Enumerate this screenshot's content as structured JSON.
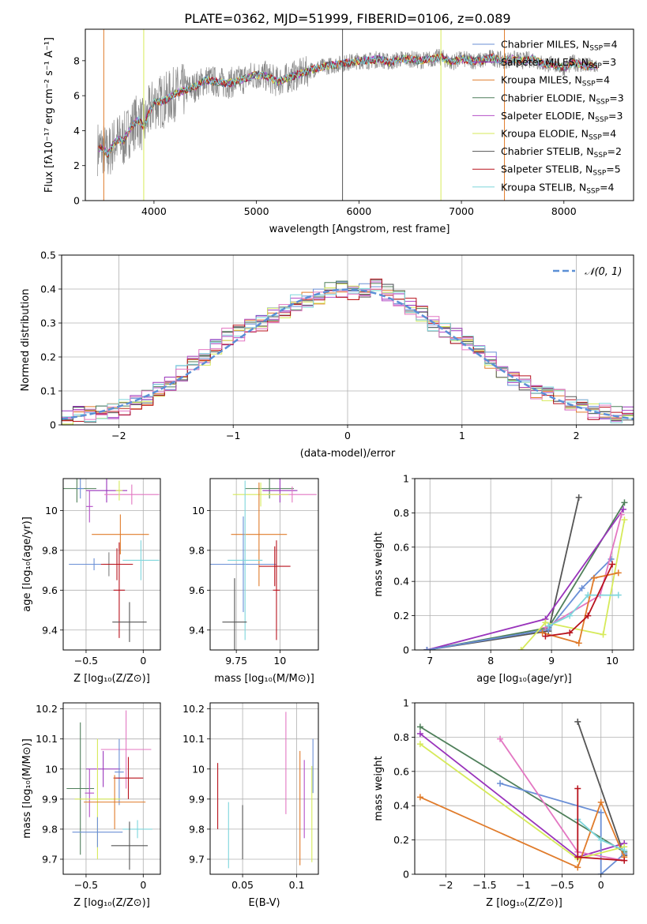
{
  "figure": {
    "title": "PLATE=0362, MJD=51999, FIBERID=0106, z=0.089"
  },
  "chart_data": [
    {
      "id": "spectrum",
      "type": "line",
      "xlabel": "wavelength [Angstrom, rest frame]",
      "ylabel": "Flux [fλ10⁻¹⁷ erg cm⁻² s⁻¹ A⁻¹]",
      "xlim": [
        3330,
        8680
      ],
      "ylim": [
        0,
        9.8
      ],
      "xticks": [
        4000,
        5000,
        6000,
        7000,
        8000
      ],
      "yticks": [
        0,
        2,
        4,
        6,
        8
      ],
      "grid": false,
      "legend": "right",
      "data": {
        "x": [
          3500,
          3550,
          3600,
          3650,
          3700,
          3750,
          3800,
          3850,
          3900,
          3950,
          4000,
          4100,
          4200,
          4300,
          4400,
          4500,
          4600,
          4700,
          4800,
          4900,
          5000,
          5100,
          5200,
          5300,
          5400,
          5500,
          5600,
          5700,
          5800,
          5900,
          6000,
          6100,
          6200,
          6300,
          6400,
          6500,
          6600,
          6700,
          6800,
          6900,
          7000,
          7100,
          7200,
          7300,
          7400,
          7500,
          7600,
          7700,
          7800,
          7900,
          8000,
          8100,
          8200,
          8300
        ],
        "y": [
          3.0,
          2.6,
          3.2,
          3.5,
          3.4,
          3.9,
          4.4,
          4.6,
          4.2,
          5.0,
          5.6,
          5.7,
          6.1,
          6.3,
          6.5,
          6.9,
          6.8,
          6.7,
          6.8,
          7.0,
          7.2,
          7.1,
          6.8,
          7.0,
          7.2,
          7.4,
          7.6,
          7.7,
          7.8,
          7.9,
          8.0,
          8.0,
          8.1,
          7.9,
          8.1,
          8.1,
          8.0,
          8.1,
          8.2,
          7.9,
          8.1,
          8.0,
          8.0,
          8.2,
          8.0,
          8.1,
          8.0,
          8.1,
          7.8,
          7.8,
          7.6,
          7.9,
          7.7,
          7.7
        ]
      },
      "series": [
        {
          "name": "Chabrier MILES, N<sub>SSP</sub>=4",
          "color": "#6a8fd6"
        },
        {
          "name": "Salpeter MILES, N<sub>SSP</sub>=3",
          "color": "#9933bb"
        },
        {
          "name": "Kroupa MILES, N<sub>SSP</sub>=4",
          "color": "#e07b2a"
        },
        {
          "name": "Chabrier ELODIE, N<sub>SSP</sub>=3",
          "color": "#4f7f5a"
        },
        {
          "name": "Salpeter ELODIE, N<sub>SSP</sub>=3",
          "color": "#b44fc7"
        },
        {
          "name": "Kroupa ELODIE, N<sub>SSP</sub>=4",
          "color": "#d6ea5a"
        },
        {
          "name": "Chabrier STELIB, N<sub>SSP</sub>=2",
          "color": "#555555"
        },
        {
          "name": "Salpeter STELIB, N<sub>SSP</sub>=5",
          "color": "#b8121c"
        },
        {
          "name": "Kroupa STELIB, N<sub>SSP</sub>=4",
          "color": "#7ed6dc"
        }
      ],
      "data_color": "#888888",
      "spikes": [
        {
          "x": 3510,
          "color": "#e07b2a"
        },
        {
          "x": 3900,
          "color": "#d6ea5a"
        },
        {
          "x": 5840,
          "color": "#555555"
        },
        {
          "x": 6800,
          "color": "#d6ea5a"
        },
        {
          "x": 7420,
          "color": "#e07b2a"
        }
      ]
    },
    {
      "id": "residuals",
      "type": "line",
      "xlabel": "(data-model)/error",
      "ylabel": "Normed distribution",
      "xlim": [
        -2.5,
        2.5
      ],
      "ylim": [
        0,
        0.5
      ],
      "xticks": [
        -2,
        -1,
        0,
        1,
        2
      ],
      "yticks": [
        0.0,
        0.1,
        0.2,
        0.3,
        0.4,
        0.5
      ],
      "grid": true,
      "legend": "top-right",
      "legend_label": "𝒩(0, 1)",
      "gaussian_color": "#5b8fd6",
      "bin_edges": [
        -2.5,
        -2.4,
        -2.3,
        -2.2,
        -2.1,
        -2.0,
        -1.9,
        -1.8,
        -1.7,
        -1.6,
        -1.5,
        -1.4,
        -1.3,
        -1.2,
        -1.1,
        -1.0,
        -0.9,
        -0.8,
        -0.7,
        -0.6,
        -0.5,
        -0.4,
        -0.3,
        -0.2,
        -0.1,
        0.0,
        0.1,
        0.2,
        0.3,
        0.4,
        0.5,
        0.6,
        0.7,
        0.8,
        0.9,
        1.0,
        1.1,
        1.2,
        1.3,
        1.4,
        1.5,
        1.6,
        1.7,
        1.8,
        1.9,
        2.0,
        2.1,
        2.2,
        2.3,
        2.4,
        2.5
      ],
      "base": [
        0.02,
        0.03,
        0.03,
        0.04,
        0.04,
        0.05,
        0.07,
        0.08,
        0.1,
        0.12,
        0.15,
        0.18,
        0.2,
        0.23,
        0.26,
        0.27,
        0.29,
        0.3,
        0.32,
        0.34,
        0.36,
        0.37,
        0.38,
        0.4,
        0.4,
        0.39,
        0.4,
        0.41,
        0.39,
        0.37,
        0.35,
        0.33,
        0.3,
        0.28,
        0.26,
        0.24,
        0.22,
        0.19,
        0.16,
        0.14,
        0.12,
        0.1,
        0.09,
        0.08,
        0.06,
        0.05,
        0.04,
        0.04,
        0.03,
        0.03
      ]
    },
    {
      "id": "age-vs-Z",
      "type": "scatter",
      "xlabel": "Z [log₁₀(Z/Z⊙)]",
      "ylabel": "age  [log₁₀(age/yr)]",
      "xlim": [
        -0.7,
        0.15
      ],
      "ylim": [
        9.3,
        10.16
      ],
      "xticks": [
        -0.5,
        0.0
      ],
      "yticks": [
        9.4,
        9.6,
        9.8,
        10.0
      ],
      "grid": true,
      "points": [
        {
          "x": -0.58,
          "y": 10.11,
          "xerr": 0.17,
          "yerr": 0.07,
          "color": "#4f7f5a"
        },
        {
          "x": -0.32,
          "y": 10.1,
          "xerr": 0.18,
          "yerr": 0.06,
          "color": "#9933bb"
        },
        {
          "x": -0.55,
          "y": 10.11,
          "xerr": 0.03,
          "yerr": 0.05,
          "color": "#6a8fd6"
        },
        {
          "x": -0.1,
          "y": 10.08,
          "xerr": 0.24,
          "yerr": 0.05,
          "color": "#e377c2"
        },
        {
          "x": -0.21,
          "y": 10.1,
          "xerr": 0.03,
          "yerr": 0.05,
          "color": "#d6ea5a"
        },
        {
          "x": -0.2,
          "y": 9.88,
          "xerr": 0.25,
          "yerr": 0.1,
          "color": "#e07b2a"
        },
        {
          "x": -0.47,
          "y": 10.02,
          "xerr": 0.03,
          "yerr": 0.08,
          "color": "#b44fc7"
        },
        {
          "x": -0.43,
          "y": 9.73,
          "xerr": 0.22,
          "yerr": 0.03,
          "color": "#6a8fd6"
        },
        {
          "x": -0.3,
          "y": 9.73,
          "xerr": 0.05,
          "yerr": 0.06,
          "color": "#7f7f7f"
        },
        {
          "x": -0.23,
          "y": 9.73,
          "xerr": 0.14,
          "yerr": 0.08,
          "color": "#b8121c"
        },
        {
          "x": -0.02,
          "y": 9.75,
          "xerr": 0.16,
          "yerr": 0.1,
          "color": "#7ed6dc"
        },
        {
          "x": -0.21,
          "y": 9.6,
          "xerr": 0.05,
          "yerr": 0.24,
          "color": "#b8121c"
        },
        {
          "x": -0.12,
          "y": 9.44,
          "xerr": 0.15,
          "yerr": 0.1,
          "color": "#555555"
        }
      ]
    },
    {
      "id": "age-vs-mass",
      "type": "scatter",
      "xlabel": "mass [log₁₀(M/M⊙)]",
      "ylabel": "",
      "xlim": [
        9.6,
        10.22
      ],
      "ylim": [
        9.3,
        10.16
      ],
      "xticks": [
        9.75,
        10.0
      ],
      "yticks": [
        9.4,
        9.6,
        9.8,
        10.0
      ],
      "grid": true,
      "points": [
        {
          "x": 9.94,
          "y": 10.11,
          "xerr": 0.14,
          "yerr": 0.05,
          "color": "#4f7f5a"
        },
        {
          "x": 10.0,
          "y": 10.1,
          "xerr": 0.1,
          "yerr": 0.06,
          "color": "#9933bb"
        },
        {
          "x": 10.07,
          "y": 10.08,
          "xerr": 0.14,
          "yerr": 0.04,
          "color": "#e377c2"
        },
        {
          "x": 9.89,
          "y": 10.08,
          "xerr": 0.16,
          "yerr": 0.06,
          "color": "#d6ea5a"
        },
        {
          "x": 9.88,
          "y": 9.88,
          "xerr": 0.16,
          "yerr": 0.26,
          "color": "#e07b2a"
        },
        {
          "x": 9.79,
          "y": 9.73,
          "xerr": 0.03,
          "yerr": 0.24,
          "color": "#6a8fd6"
        },
        {
          "x": 9.79,
          "y": 9.73,
          "xerr": 0.19,
          "yerr": 0.03,
          "color": "#6a8fd6"
        },
        {
          "x": 9.8,
          "y": 9.75,
          "xerr": 0.1,
          "yerr": 0.4,
          "color": "#7ed6dc"
        },
        {
          "x": 9.97,
          "y": 9.72,
          "xerr": 0.09,
          "yerr": 0.1,
          "color": "#b8121c"
        },
        {
          "x": 9.98,
          "y": 9.6,
          "xerr": 0.02,
          "yerr": 0.25,
          "color": "#b8121c"
        },
        {
          "x": 9.74,
          "y": 9.44,
          "xerr": 0.07,
          "yerr": 0.22,
          "color": "#555555"
        }
      ]
    },
    {
      "id": "weight-vs-age",
      "type": "line",
      "xlabel": "age  [log₁₀(age/yr)]",
      "ylabel": "mass weight",
      "xlim": [
        6.75,
        10.35
      ],
      "ylim": [
        0,
        1.0
      ],
      "xticks": [
        7,
        8,
        9,
        10
      ],
      "yticks": [
        0.0,
        0.2,
        0.4,
        0.6,
        0.8,
        1.0
      ],
      "grid": true,
      "series": [
        {
          "color": "#555555",
          "x": [
            6.95,
            8.95,
            9.45
          ],
          "y": [
            0.0,
            0.11,
            0.89
          ]
        },
        {
          "color": "#4f7f5a",
          "x": [
            6.95,
            8.95,
            10.2
          ],
          "y": [
            0.0,
            0.13,
            0.86
          ]
        },
        {
          "color": "#9933bb",
          "x": [
            6.95,
            8.9,
            10.18
          ],
          "y": [
            0.0,
            0.18,
            0.82
          ]
        },
        {
          "color": "#6a8fd6",
          "x": [
            6.95,
            8.95,
            9.5,
            9.98
          ],
          "y": [
            0.0,
            0.12,
            0.36,
            0.53
          ]
        },
        {
          "color": "#e377c2",
          "x": [
            8.9,
            9.8,
            10.15
          ],
          "y": [
            0.13,
            0.32,
            0.79
          ]
        },
        {
          "color": "#d6ea5a",
          "x": [
            8.5,
            8.9,
            9.85,
            10.2
          ],
          "y": [
            0.0,
            0.16,
            0.09,
            0.76
          ]
        },
        {
          "color": "#e07b2a",
          "x": [
            8.85,
            9.45,
            9.7,
            10.1
          ],
          "y": [
            0.1,
            0.04,
            0.42,
            0.45
          ]
        },
        {
          "color": "#7ed6dc",
          "x": [
            8.95,
            9.3,
            9.6,
            10.1
          ],
          "y": [
            0.14,
            0.2,
            0.32,
            0.32
          ]
        },
        {
          "color": "#b8121c",
          "x": [
            8.9,
            9.3,
            9.6,
            10.0
          ],
          "y": [
            0.08,
            0.1,
            0.2,
            0.5
          ]
        }
      ]
    },
    {
      "id": "mass-vs-Z",
      "type": "scatter",
      "xlabel": "Z [log₁₀(Z/Z⊙)]",
      "ylabel": "mass [log₁₀(M/M⊙)]",
      "xlim": [
        -0.7,
        0.15
      ],
      "ylim": [
        9.65,
        10.22
      ],
      "xticks": [
        -0.5,
        0.0
      ],
      "yticks": [
        9.7,
        9.8,
        9.9,
        10.0,
        10.1,
        10.2
      ],
      "grid": true,
      "points": [
        {
          "x": -0.15,
          "y": 10.065,
          "xerr": 0.22,
          "yerr": 0.13,
          "color": "#e377c2"
        },
        {
          "x": -0.35,
          "y": 10.0,
          "xerr": 0.15,
          "yerr": 0.06,
          "color": "#9933bb"
        },
        {
          "x": -0.21,
          "y": 9.99,
          "xerr": 0.04,
          "yerr": 0.11,
          "color": "#6a8fd6"
        },
        {
          "x": -0.13,
          "y": 9.97,
          "xerr": 0.13,
          "yerr": 0.07,
          "color": "#b8121c"
        },
        {
          "x": -0.55,
          "y": 9.935,
          "xerr": 0.12,
          "yerr": 0.22,
          "color": "#4f7f5a"
        },
        {
          "x": -0.47,
          "y": 9.92,
          "xerr": 0.04,
          "yerr": 0.08,
          "color": "#b44fc7"
        },
        {
          "x": -0.4,
          "y": 9.9,
          "xerr": 0.2,
          "yerr": 0.2,
          "color": "#d6ea5a"
        },
        {
          "x": -0.25,
          "y": 9.89,
          "xerr": 0.27,
          "yerr": 0.09,
          "color": "#e07b2a"
        },
        {
          "x": -0.4,
          "y": 9.79,
          "xerr": 0.22,
          "yerr": 0.05,
          "color": "#6a8fd6"
        },
        {
          "x": -0.05,
          "y": 9.8,
          "xerr": 0.13,
          "yerr": 0.03,
          "color": "#7ed6dc"
        },
        {
          "x": -0.12,
          "y": 9.745,
          "xerr": 0.16,
          "yerr": 0.08,
          "color": "#555555"
        }
      ]
    },
    {
      "id": "mass-vs-EBV",
      "type": "scatter",
      "xlabel": "E(B-V)",
      "ylabel": "",
      "xlim": [
        0.02,
        0.12
      ],
      "ylim": [
        9.65,
        10.22
      ],
      "xticks": [
        0.05,
        0.1
      ],
      "yticks": [
        9.7,
        9.8,
        9.9,
        10.0,
        10.1,
        10.2
      ],
      "grid": true,
      "points": [
        {
          "x": 0.027,
          "y": 9.91,
          "xerr": 0,
          "yerr": 0.11,
          "color": "#b8121c"
        },
        {
          "x": 0.037,
          "y": 9.78,
          "xerr": 0,
          "yerr": 0.11,
          "color": "#7ed6dc"
        },
        {
          "x": 0.05,
          "y": 9.79,
          "xerr": 0,
          "yerr": 0.09,
          "color": "#555555"
        },
        {
          "x": 0.09,
          "y": 10.02,
          "xerr": 0,
          "yerr": 0.17,
          "color": "#e377c2"
        },
        {
          "x": 0.103,
          "y": 9.87,
          "xerr": 0,
          "yerr": 0.19,
          "color": "#e07b2a"
        },
        {
          "x": 0.107,
          "y": 9.9,
          "xerr": 0,
          "yerr": 0.13,
          "color": "#b44fc7"
        },
        {
          "x": 0.114,
          "y": 9.85,
          "xerr": 0,
          "yerr": 0.16,
          "color": "#d6ea5a"
        },
        {
          "x": 0.115,
          "y": 10.01,
          "xerr": 0,
          "yerr": 0.09,
          "color": "#6a8fd6"
        }
      ]
    },
    {
      "id": "weight-vs-Z",
      "type": "line",
      "xlabel": "Z [log₁₀(Z/Z⊙)]",
      "ylabel": "mass weight",
      "xlim": [
        -2.4,
        0.42
      ],
      "ylim": [
        0,
        1.0
      ],
      "xticks": [
        -2.0,
        -1.5,
        -1.0,
        -0.5,
        0.0
      ],
      "yticks": [
        0.0,
        0.2,
        0.4,
        0.6,
        0.8,
        1.0
      ],
      "grid": true,
      "series": [
        {
          "color": "#555555",
          "x": [
            -0.3,
            0.3
          ],
          "y": [
            0.89,
            0.11
          ]
        },
        {
          "color": "#4f7f5a",
          "x": [
            -2.33,
            0.3
          ],
          "y": [
            0.86,
            0.13
          ]
        },
        {
          "color": "#9933bb",
          "x": [
            -2.33,
            -0.3,
            0.3
          ],
          "y": [
            0.82,
            0.1,
            0.18
          ]
        },
        {
          "color": "#6a8fd6",
          "x": [
            -1.3,
            0.0,
            0.0,
            0.3
          ],
          "y": [
            0.53,
            0.36,
            0.0,
            0.12
          ]
        },
        {
          "color": "#e377c2",
          "x": [
            -1.3,
            -0.3,
            0.3
          ],
          "y": [
            0.79,
            0.13,
            0.08
          ]
        },
        {
          "color": "#d6ea5a",
          "x": [
            -2.33,
            -0.3,
            0.3
          ],
          "y": [
            0.76,
            0.09,
            0.16
          ]
        },
        {
          "color": "#e07b2a",
          "x": [
            -2.33,
            -0.3,
            0.0,
            0.3
          ],
          "y": [
            0.45,
            0.04,
            0.42,
            0.1
          ]
        },
        {
          "color": "#7ed6dc",
          "x": [
            -0.3,
            0.0,
            0.3
          ],
          "y": [
            0.32,
            0.2,
            0.14
          ]
        },
        {
          "color": "#b8121c",
          "x": [
            -0.3,
            -0.3,
            0.3
          ],
          "y": [
            0.5,
            0.1,
            0.08
          ]
        }
      ]
    }
  ]
}
